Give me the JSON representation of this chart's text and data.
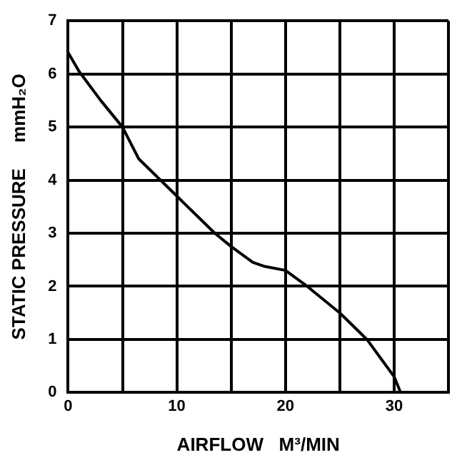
{
  "chart_data": {
    "type": "line",
    "xlabel": "AIRFLOW   M³/MIN",
    "ylabel": "STATIC PRESSURE     mmH₂O",
    "x": [
      0,
      1,
      3,
      5,
      6.5,
      9,
      11.5,
      13.5,
      15,
      17,
      18,
      20,
      22,
      25,
      27.5,
      30,
      30.6
    ],
    "series": [
      {
        "color": "#000000",
        "values": [
          6.4,
          6.05,
          5.5,
          5.0,
          4.4,
          3.9,
          3.4,
          3.0,
          2.75,
          2.45,
          2.38,
          2.3,
          2.0,
          1.5,
          1.0,
          0.3,
          0.0
        ]
      }
    ],
    "xlim": [
      0,
      35
    ],
    "ylim": [
      0,
      7
    ],
    "xticks": [
      0,
      {
        "value": 5,
        "label": null
      },
      10,
      {
        "value": 15,
        "label": null
      },
      20,
      {
        "value": 25,
        "label": null
      },
      30,
      {
        "value": 35,
        "label": null
      }
    ],
    "yticks": [
      0,
      1,
      2,
      3,
      4,
      5,
      6,
      7
    ],
    "grid": true,
    "legend": false,
    "marker": "none",
    "line_style": "solid"
  }
}
